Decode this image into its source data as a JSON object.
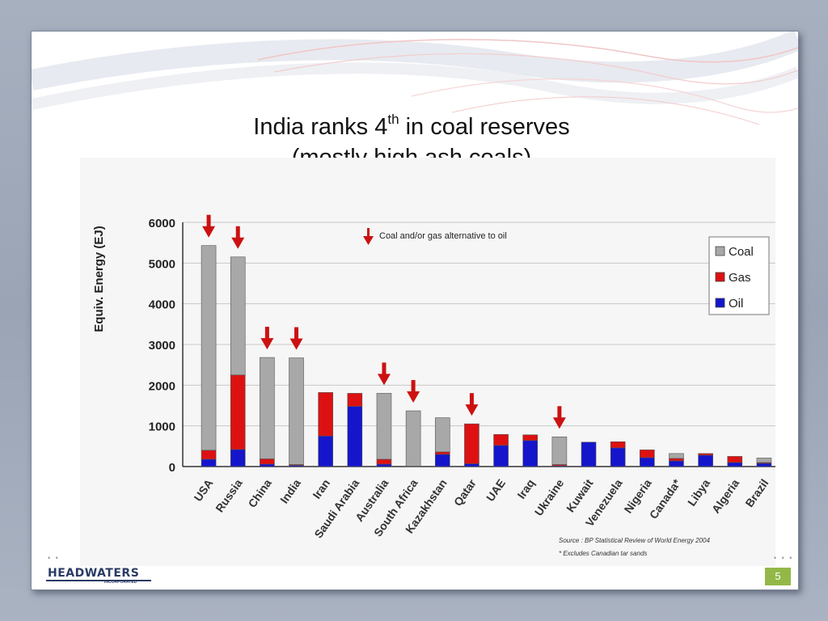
{
  "slide": {
    "title_line1_before": "India ranks 4",
    "title_line1_sup": "th",
    "title_line1_after": " in coal reserves",
    "title_line2": "(mostly high ash coals)",
    "page_number": "5",
    "logo_text": "HEADWATERS",
    "logo_sub": "INCORPORATED"
  },
  "chart_data": {
    "type": "bar",
    "stacked": true,
    "title": "",
    "xlabel": "",
    "ylabel": "Equiv. Energy (EJ)",
    "ylim": [
      0,
      6000
    ],
    "yticks": [
      "0",
      "1000",
      "2000",
      "3000",
      "4000",
      "5000",
      "6000"
    ],
    "categories": [
      "USA",
      "Russia",
      "China",
      "India",
      "Iran",
      "Saudi Arabia",
      "Australia",
      "South Africa",
      "Kazakhstan",
      "Qatar",
      "UAE",
      "Iraq",
      "Ukraine",
      "Kuwait",
      "Venezuela",
      "Nigeria",
      "Canada*",
      "Libya",
      "Algeria",
      "Brazil"
    ],
    "series": [
      {
        "name": "Oil",
        "color": "#1515cc",
        "values": [
          180,
          420,
          60,
          30,
          750,
          1480,
          60,
          10,
          300,
          70,
          520,
          640,
          20,
          600,
          460,
          220,
          140,
          280,
          100,
          80
        ]
      },
      {
        "name": "Gas",
        "color": "#dd1111",
        "values": [
          220,
          1830,
          130,
          20,
          1070,
          320,
          120,
          0,
          60,
          980,
          270,
          140,
          30,
          0,
          150,
          190,
          60,
          40,
          150,
          20
        ]
      },
      {
        "name": "Coal",
        "color": "#a8a8a8",
        "values": [
          5030,
          2900,
          2490,
          2620,
          0,
          0,
          1620,
          1360,
          840,
          0,
          0,
          0,
          680,
          0,
          0,
          0,
          120,
          0,
          0,
          110
        ]
      }
    ],
    "legend_position": "top-right",
    "arrow_marked": [
      "USA",
      "Russia",
      "China",
      "India",
      "Australia",
      "South Africa",
      "Qatar",
      "Ukraine"
    ],
    "annotation": "Coal and/or gas alternative to oil",
    "source": "Source : BP Statistical Review of World Energy 2004",
    "footnote": "* Excludes Canadian tar sands",
    "grid": true
  }
}
